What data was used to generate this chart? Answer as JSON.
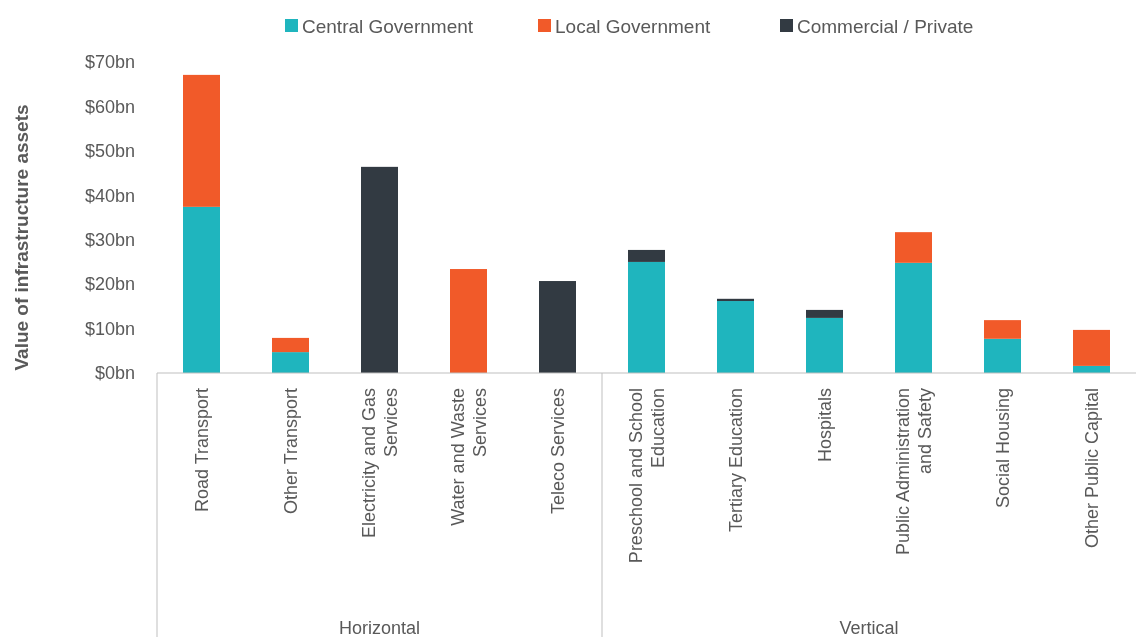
{
  "chart_data": {
    "type": "bar",
    "stacked": true,
    "ylabel": "Value of infrastructure assets",
    "categories": [
      "Road Transport",
      "Other Transport",
      "Electricity and Gas Services",
      "Water and Waste Services",
      "Teleco Services",
      "Preschool and School Education",
      "Tertiary Education",
      "Hospitals",
      "Public Administration and Safety",
      "Social Housing",
      "Other Public Capital"
    ],
    "series": [
      {
        "name": "Central Government",
        "color": "#1fb5be",
        "values": [
          37.4,
          4.7,
          null,
          null,
          null,
          25.0,
          16.2,
          12.4,
          24.8,
          7.7,
          1.6
        ]
      },
      {
        "name": "Local Government",
        "color": "#f15a29",
        "values": [
          29.7,
          3.2,
          null,
          23.4,
          null,
          null,
          null,
          null,
          6.9,
          4.2,
          8.1
        ]
      },
      {
        "name": "Commercial / Private",
        "color": "#323a42",
        "values": [
          null,
          null,
          46.4,
          null,
          20.7,
          2.7,
          0.5,
          1.8,
          null,
          null,
          null
        ]
      }
    ],
    "ylim": [
      0,
      70
    ],
    "yticks": [
      {
        "value": 0,
        "label": "$0bn"
      },
      {
        "value": 10,
        "label": "$10bn"
      },
      {
        "value": 20,
        "label": "$20bn"
      },
      {
        "value": 30,
        "label": "$30bn"
      },
      {
        "value": 40,
        "label": "$40bn"
      },
      {
        "value": 50,
        "label": "$50bn"
      },
      {
        "value": 60,
        "label": "$60bn"
      },
      {
        "value": 70,
        "label": "$70bn"
      }
    ],
    "annotations": [
      "Horizontal",
      "Vertical"
    ],
    "legend": "top",
    "grid": false
  }
}
